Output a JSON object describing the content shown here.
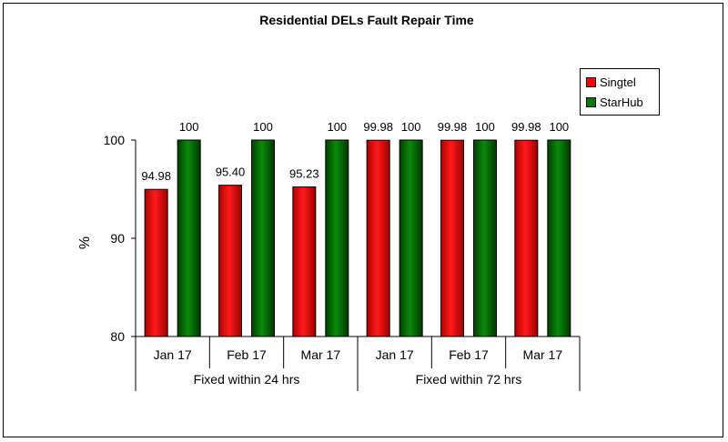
{
  "chart_data": {
    "type": "bar",
    "title": "Residential DELs Fault Repair Time",
    "ylabel": "%",
    "ylim": [
      80,
      100
    ],
    "yticks": [
      80,
      90,
      100
    ],
    "grid": false,
    "legend_position": "top-right",
    "categories": [
      "Jan 17",
      "Feb 17",
      "Mar 17",
      "Jan 17",
      "Feb 17",
      "Mar 17"
    ],
    "groups": [
      {
        "label": "Fixed within 24 hrs",
        "span": 3
      },
      {
        "label": "Fixed within 72 hrs",
        "span": 3
      }
    ],
    "series": [
      {
        "name": "Singtel",
        "color": "#ff0000",
        "values": [
          94.98,
          95.4,
          95.23,
          99.98,
          99.98,
          99.98
        ],
        "labels": [
          "94.98",
          "95.40",
          "95.23",
          "99.98",
          "99.98",
          "99.98"
        ]
      },
      {
        "name": "StarHub",
        "color": "#007a00",
        "values": [
          100,
          100,
          100,
          100,
          100,
          100
        ],
        "labels": [
          "100",
          "100",
          "100",
          "100",
          "100",
          "100"
        ]
      }
    ]
  }
}
